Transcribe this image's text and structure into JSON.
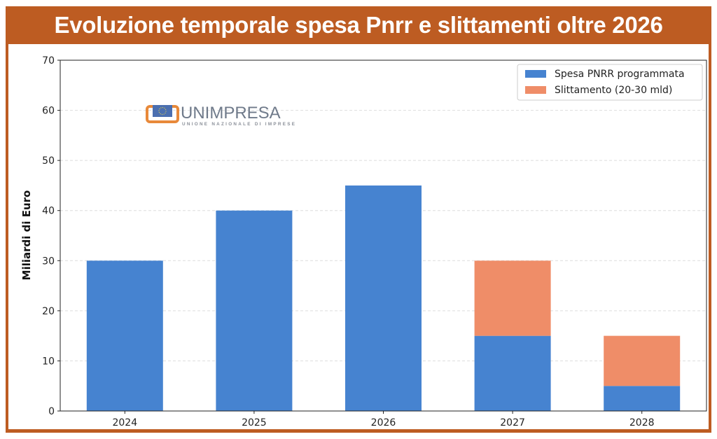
{
  "title": "Evoluzione temporale spesa Pnrr e slittamenti oltre 2026",
  "logo": {
    "name": "UNIMPRESA",
    "subtitle": "UNIONE NAZIONALE DI IMPRESE"
  },
  "colors": {
    "frame": "#bd5c22",
    "programmed": "#4683d0",
    "slippage": "#ef8d68"
  },
  "chart_data": {
    "type": "bar",
    "stacked": true,
    "title": "Evoluzione temporale spesa Pnrr e slittamenti oltre 2026",
    "xlabel": "",
    "ylabel": "Miliardi di Euro",
    "ylim": [
      0,
      70
    ],
    "yticks": [
      0,
      10,
      20,
      30,
      40,
      50,
      60,
      70
    ],
    "grid": true,
    "legend_position": "top-right",
    "categories": [
      "2024",
      "2025",
      "2026",
      "2027",
      "2028"
    ],
    "series": [
      {
        "name": "Spesa PNRR programmata",
        "values": [
          30,
          40,
          45,
          15,
          5
        ]
      },
      {
        "name": "Slittamento (20-30 mld)",
        "values": [
          0,
          0,
          0,
          15,
          10
        ]
      }
    ]
  }
}
